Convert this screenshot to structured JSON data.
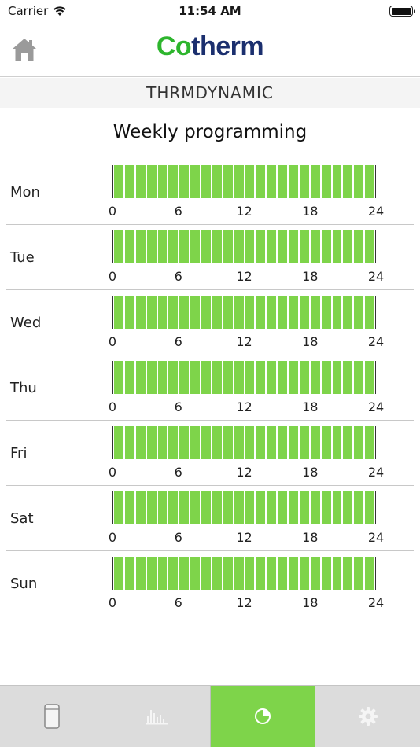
{
  "status": {
    "carrier": "Carrier",
    "time": "11:54 AM"
  },
  "header": {
    "logo_green": "Co",
    "logo_blue": "therm",
    "home_icon": "home-icon"
  },
  "subtitle": "THRMDYNAMIC",
  "title": "Weekly programming",
  "axis_ticks": [
    "0",
    "6",
    "12",
    "18",
    "24"
  ],
  "days": [
    {
      "label": "Mon"
    },
    {
      "label": "Tue"
    },
    {
      "label": "Wed"
    },
    {
      "label": "Thu"
    },
    {
      "label": "Fri"
    },
    {
      "label": "Sat"
    },
    {
      "label": "Sun"
    }
  ],
  "slots_per_day": 24,
  "active_color": "#7ed44a",
  "tabs": [
    {
      "icon": "device-icon",
      "active": false
    },
    {
      "icon": "bar-chart-icon",
      "active": false
    },
    {
      "icon": "pie-chart-icon",
      "active": true
    },
    {
      "icon": "gear-icon",
      "active": false
    }
  ]
}
